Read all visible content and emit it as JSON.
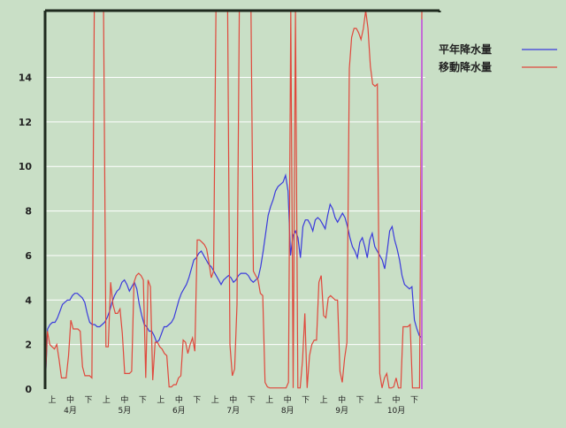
{
  "chart_data": {
    "type": "line",
    "title": "",
    "xlabel": "",
    "ylabel": "",
    "ylim": [
      0,
      17
    ],
    "y_ticks": [
      0,
      2,
      4,
      6,
      8,
      10,
      12,
      14
    ],
    "grid": true,
    "legend_position": "top-right",
    "x_tick_labels": [
      "上",
      "中",
      "下",
      "上",
      "中",
      "下",
      "上",
      "中",
      "下",
      "上",
      "中",
      "下",
      "上",
      "中",
      "下",
      "上",
      "中",
      "下",
      "上",
      "中",
      "下"
    ],
    "month_labels": [
      "4月",
      "5月",
      "6月",
      "7月",
      "8月",
      "9月",
      "10月"
    ],
    "series": [
      {
        "name": "平年降水量",
        "color": "#3a3adc",
        "values": [
          0,
          2.7,
          2.9,
          3.0,
          3.0,
          3.2,
          3.5,
          3.8,
          3.9,
          4.0,
          4.0,
          4.2,
          4.3,
          4.3,
          4.2,
          4.1,
          3.9,
          3.4,
          3.0,
          2.9,
          2.9,
          2.8,
          2.8,
          2.9,
          3.0,
          3.2,
          3.5,
          3.9,
          4.2,
          4.4,
          4.5,
          4.8,
          4.9,
          4.7,
          4.4,
          4.6,
          4.8,
          4.5,
          3.8,
          3.3,
          2.9,
          2.8,
          2.6,
          2.6,
          2.4,
          2.1,
          2.2,
          2.5,
          2.8,
          2.8,
          2.9,
          3.0,
          3.2,
          3.6,
          4.0,
          4.3,
          4.5,
          4.7,
          5.0,
          5.4,
          5.8,
          5.9,
          6.1,
          6.2,
          6.0,
          5.8,
          5.6,
          5.5,
          5.3,
          5.1,
          4.9,
          4.7,
          4.9,
          5.0,
          5.1,
          5.0,
          4.8,
          4.9,
          5.1,
          5.2,
          5.2,
          5.2,
          5.1,
          4.9,
          4.8,
          4.9,
          5.0,
          5.5,
          6.2,
          7.0,
          7.8,
          8.2,
          8.5,
          8.9,
          9.1,
          9.2,
          9.3,
          9.6,
          8.9,
          6.0,
          6.9,
          7.1,
          6.8,
          5.9,
          7.3,
          7.6,
          7.6,
          7.4,
          7.1,
          7.6,
          7.7,
          7.6,
          7.4,
          7.2,
          7.8,
          8.3,
          8.1,
          7.7,
          7.5,
          7.7,
          7.9,
          7.7,
          7.3,
          6.8,
          6.4,
          6.2,
          5.9,
          6.6,
          6.8,
          6.4,
          5.9,
          6.7,
          7.0,
          6.4,
          6.2,
          6.0,
          5.8,
          5.4,
          6.2,
          7.1,
          7.3,
          6.7,
          6.3,
          5.8,
          5.1,
          4.7,
          4.6,
          4.5,
          4.6,
          3.1,
          2.7,
          2.4,
          2.3
        ]
      },
      {
        "name": "移動降水量",
        "color": "#e0483c",
        "values": [
          0,
          2.6,
          2.0,
          1.9,
          1.8,
          2.0,
          1.3,
          0.5,
          0.5,
          0.5,
          1.5,
          3.1,
          2.7,
          2.7,
          2.7,
          2.6,
          1.0,
          0.6,
          0.6,
          0.6,
          0.5,
          17,
          17,
          17,
          17,
          17,
          1.9,
          1.9,
          4.8,
          3.8,
          3.4,
          3.4,
          3.6,
          2.5,
          0.7,
          0.7,
          0.7,
          0.8,
          4.8,
          5.1,
          5.2,
          5.1,
          4.9,
          0.5,
          4.9,
          4.6,
          0.4,
          2.1,
          2.1,
          1.9,
          1.8,
          1.6,
          1.5,
          0.1,
          0.1,
          0.2,
          0.2,
          0.5,
          0.6,
          2.2,
          2.1,
          1.6,
          2.0,
          2.3,
          1.7,
          6.7,
          6.7,
          6.6,
          6.5,
          6.3,
          5.7,
          5.0,
          5.3,
          17,
          17,
          17,
          17,
          17,
          17,
          2.0,
          0.6,
          0.9,
          3.8,
          17,
          17,
          17,
          17,
          17,
          17,
          5.3,
          5.1,
          4.9,
          4.3,
          4.2,
          0.3,
          0.1,
          0.05,
          0.05,
          0.05,
          0.05,
          0.05,
          0.05,
          0.05,
          0.05,
          0.3,
          17,
          0.05,
          17,
          0.05,
          0.05,
          1.3,
          3.4,
          0.05,
          1.5,
          2.0,
          2.2,
          2.2,
          4.8,
          5.1,
          3.3,
          3.2,
          4.1,
          4.2,
          4.1,
          4.0,
          4.0,
          0.8,
          0.3,
          1.4,
          2.1,
          14.4,
          15.8,
          16.2,
          16.2,
          16.0,
          15.7,
          16.2,
          17,
          16.2,
          14.5,
          13.7,
          13.6,
          13.7,
          0.7,
          0.05,
          0.5,
          0.7,
          0.05,
          0.05,
          0.1,
          0.5,
          0.05,
          0.05,
          2.8,
          2.8,
          2.8,
          2.9,
          0.05,
          0.05,
          0.05,
          0.05,
          17
        ]
      }
    ]
  }
}
